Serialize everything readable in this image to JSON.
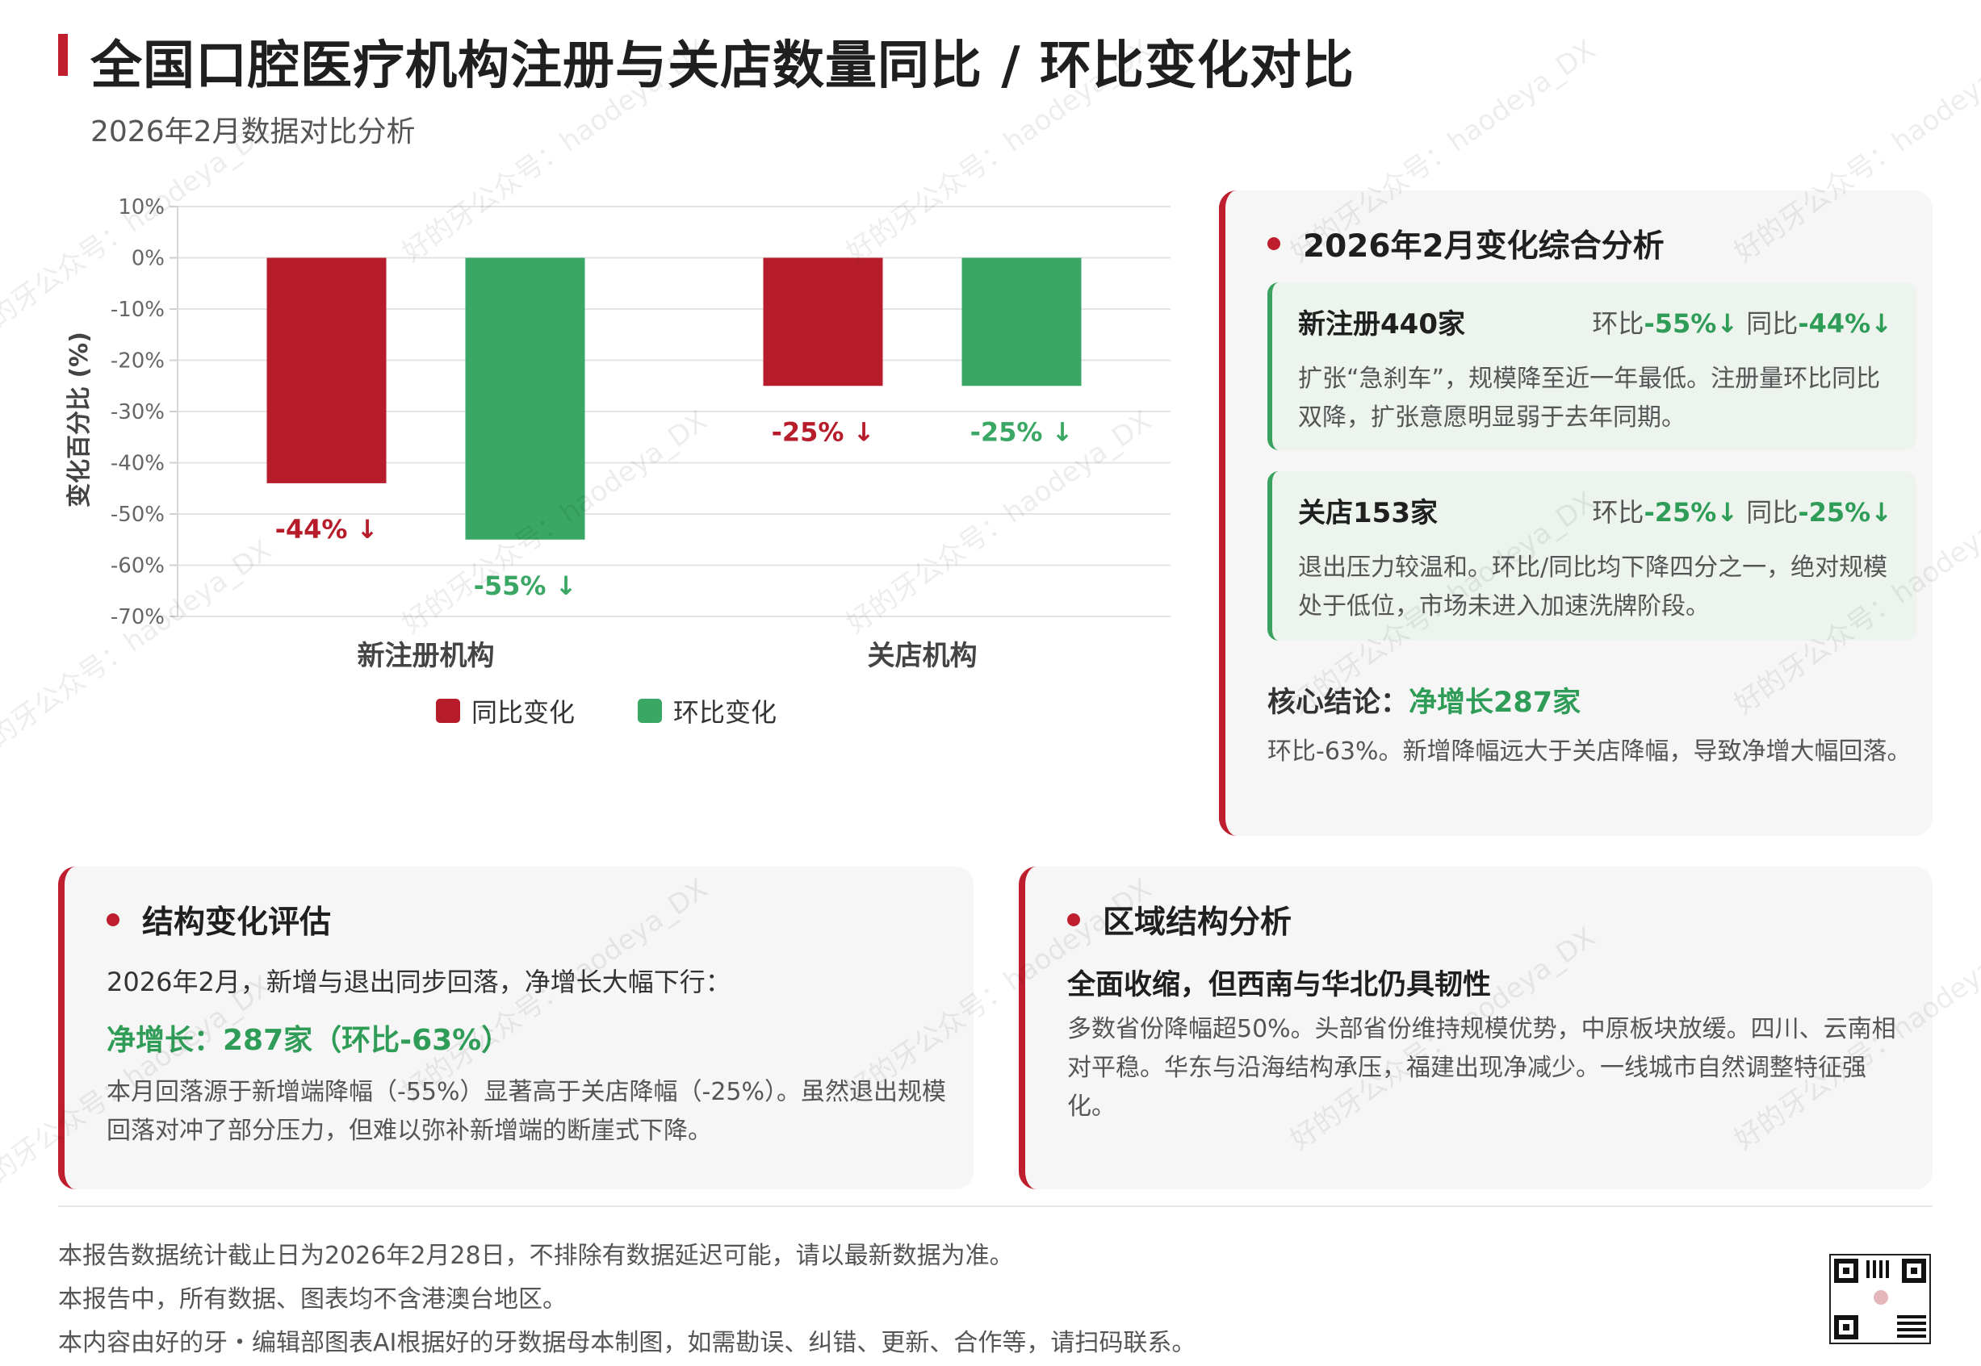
{
  "header": {
    "title": "全国口腔医疗机构注册与关店数量同比 / 环比变化对比",
    "subtitle": "2026年2月数据对比分析"
  },
  "chart_data": {
    "type": "bar",
    "categories": [
      "新注册机构",
      "关店机构"
    ],
    "series": [
      {
        "name": "同比变化",
        "values": [
          -44,
          -25
        ],
        "labels": [
          "-44% ↓",
          "-25% ↓"
        ],
        "color": "#b71c2a"
      },
      {
        "name": "环比变化",
        "values": [
          -55,
          -25
        ],
        "labels": [
          "-55% ↓",
          "-25% ↓"
        ],
        "color": "#3aa765"
      }
    ],
    "title": "",
    "xlabel": "",
    "ylabel": "变化百分比 (%)",
    "ylim": [
      -70,
      10
    ],
    "yticks": [
      10,
      0,
      -10,
      -20,
      -30,
      -40,
      -50,
      -60,
      -70
    ],
    "ytick_labels": [
      "10%",
      "0%",
      "-10%",
      "-20%",
      "-30%",
      "-40%",
      "-50%",
      "-60%",
      "-70%"
    ],
    "grid": true,
    "legend": "bottom"
  },
  "analysis": {
    "title": "2026年2月变化综合分析",
    "new_reg": {
      "head": "新注册440家",
      "hb_label": "环比",
      "hb_value": "-55%↓",
      "tb_label": "同比",
      "tb_value": "-44%↓",
      "body": "扩张“急刹车”，规模降至近一年最低。注册量环比同比双降，扩张意愿明显弱于去年同期。"
    },
    "closed": {
      "head": "关店153家",
      "hb_label": "环比",
      "hb_value": "-25%↓",
      "tb_label": "同比",
      "tb_value": "-25%↓",
      "body": "退出压力较温和。环比/同比均下降四分之一，绝对规模处于低位，市场未进入加速洗牌阶段。"
    },
    "core_label": "核心结论：",
    "core_value": "净增长287家",
    "core_body": "环比-63%。新增降幅远大于关店降幅，导致净增大幅回落。"
  },
  "structure": {
    "title": "结构变化评估",
    "lead": "2026年2月，新增与退出同步回落，净增长大幅下行：",
    "net": "净增长：287家（环比-63%）",
    "body": "本月回落源于新增端降幅（-55%）显著高于关店降幅（-25%）。虽然退出规模回落对冲了部分压力，但难以弥补新增端的断崖式下降。"
  },
  "region": {
    "title": "区域结构分析",
    "lead": "全面收缩，但西南与华北仍具韧性",
    "body": "多数省份降幅超50%。头部省份维持规模优势，中原板块放缓。四川、云南相对平稳。华东与沿海结构承压，福建出现净减少。一线城市自然调整特征强化。"
  },
  "footer": {
    "lines": [
      "本报告数据统计截止日为2026年2月28日，不排除有数据延迟可能，请以最新数据为准。",
      "本报告中，所有数据、图表均不含港澳台地区。",
      "本内容由好的牙・编辑部图表AI根据好的牙数据母本制图，如需勘误、纠错、更新、合作等，请扫码联系。"
    ]
  },
  "watermark": {
    "text": "好的牙公众号：haodeya_DX"
  },
  "colors": {
    "accent_red": "#bf1e2e",
    "accent_green": "#2f9d57"
  }
}
